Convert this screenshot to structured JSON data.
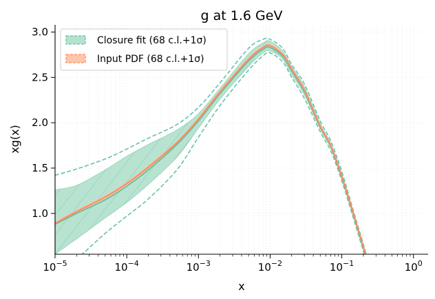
{
  "chart_data": {
    "type": "line",
    "title": "g at 1.6 GeV",
    "xlabel": "x",
    "ylabel": "xg(x)",
    "xscale": "log",
    "xlim": [
      1e-05,
      1.6
    ],
    "ylim": [
      0.55,
      3.08
    ],
    "xtick_values": [
      1e-05,
      0.0001,
      0.001,
      0.01,
      0.1,
      1
    ],
    "xtick_labels": [
      {
        "base": "10",
        "exp": "−5"
      },
      {
        "base": "10",
        "exp": "−4"
      },
      {
        "base": "10",
        "exp": "−3"
      },
      {
        "base": "10",
        "exp": "−2"
      },
      {
        "base": "10",
        "exp": "−1"
      },
      {
        "base": "10",
        "exp": "0"
      }
    ],
    "yticks": [
      1.0,
      1.5,
      2.0,
      2.5,
      3.0
    ],
    "ytick_labels": [
      "1.0",
      "1.5",
      "2.0",
      "2.5",
      "3.0"
    ],
    "grid": true,
    "legend_position": "top-left",
    "series": [
      {
        "name": "Closure fit (68 c.l.+1σ)",
        "color": "#66c2a5",
        "fill_color": "#b3e2cd",
        "x": [
          1e-05,
          2e-05,
          5e-05,
          0.0001,
          0.0002,
          0.0005,
          0.001,
          0.002,
          0.005,
          0.008,
          0.01,
          0.015,
          0.02,
          0.03,
          0.05,
          0.07,
          0.1,
          0.15,
          0.2,
          0.23
        ],
        "central": [
          0.88,
          1.0,
          1.15,
          1.3,
          1.48,
          1.76,
          2.02,
          2.32,
          2.68,
          2.81,
          2.83,
          2.73,
          2.57,
          2.34,
          1.95,
          1.74,
          1.4,
          0.95,
          0.62,
          0.45
        ],
        "band68_lower": [
          0.55,
          0.72,
          0.95,
          1.12,
          1.32,
          1.62,
          1.94,
          2.26,
          2.62,
          2.77,
          2.79,
          2.7,
          2.53,
          2.31,
          1.93,
          1.72,
          1.38,
          0.93,
          0.6,
          0.43
        ],
        "band68_upper": [
          1.26,
          1.31,
          1.48,
          1.63,
          1.76,
          1.92,
          2.1,
          2.38,
          2.76,
          2.88,
          2.9,
          2.79,
          2.62,
          2.4,
          1.99,
          1.77,
          1.43,
          0.97,
          0.64,
          0.47
        ],
        "sigma_lower": [
          0.35,
          0.5,
          0.78,
          0.97,
          1.16,
          1.48,
          1.84,
          2.19,
          2.58,
          2.74,
          2.77,
          2.67,
          2.5,
          2.27,
          1.9,
          1.69,
          1.36,
          0.91,
          0.58,
          0.41
        ],
        "sigma_upper": [
          1.42,
          1.49,
          1.6,
          1.71,
          1.83,
          1.98,
          2.17,
          2.44,
          2.82,
          2.92,
          2.92,
          2.82,
          2.64,
          2.43,
          2.02,
          1.8,
          1.46,
          0.99,
          0.66,
          0.49
        ]
      },
      {
        "name": "Input PDF (68 c.l.+1σ)",
        "color": "#fc8d62",
        "fill_color": "#fdc6ad",
        "x": [
          1e-05,
          2e-05,
          5e-05,
          0.0001,
          0.0002,
          0.0005,
          0.001,
          0.002,
          0.005,
          0.008,
          0.01,
          0.015,
          0.02,
          0.03,
          0.05,
          0.07,
          0.1,
          0.15,
          0.2,
          0.23
        ],
        "central": [
          0.89,
          1.02,
          1.18,
          1.33,
          1.51,
          1.78,
          2.04,
          2.34,
          2.7,
          2.83,
          2.85,
          2.75,
          2.59,
          2.36,
          1.96,
          1.75,
          1.41,
          0.96,
          0.63,
          0.46
        ]
      }
    ]
  }
}
